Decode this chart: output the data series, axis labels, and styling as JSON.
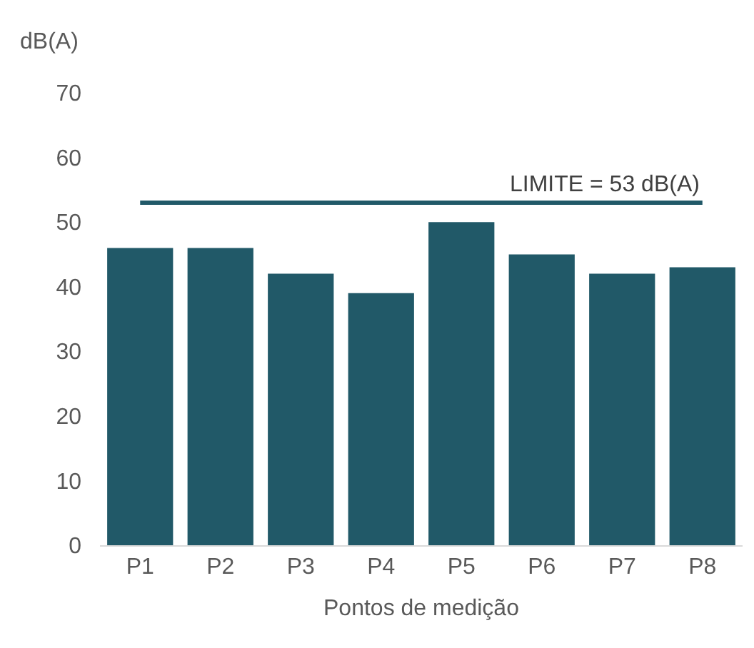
{
  "chart_data": {
    "type": "bar",
    "ylabel": "dB(A)",
    "xlabel": "Pontos de medição",
    "categories": [
      "P1",
      "P2",
      "P3",
      "P4",
      "P5",
      "P6",
      "P7",
      "P8"
    ],
    "values": [
      46,
      46,
      42,
      39,
      50,
      45,
      42,
      43
    ],
    "color": "#215968",
    "ylim": [
      0,
      70
    ],
    "yticks": [
      0,
      10,
      20,
      30,
      40,
      50,
      60,
      70
    ],
    "grid": false,
    "legend": false,
    "ref_lines": [
      {
        "axis": "y",
        "value": 53,
        "label": "LIMITE = 53 dB(A)",
        "color": "#215968",
        "line_style": "solid"
      }
    ]
  }
}
